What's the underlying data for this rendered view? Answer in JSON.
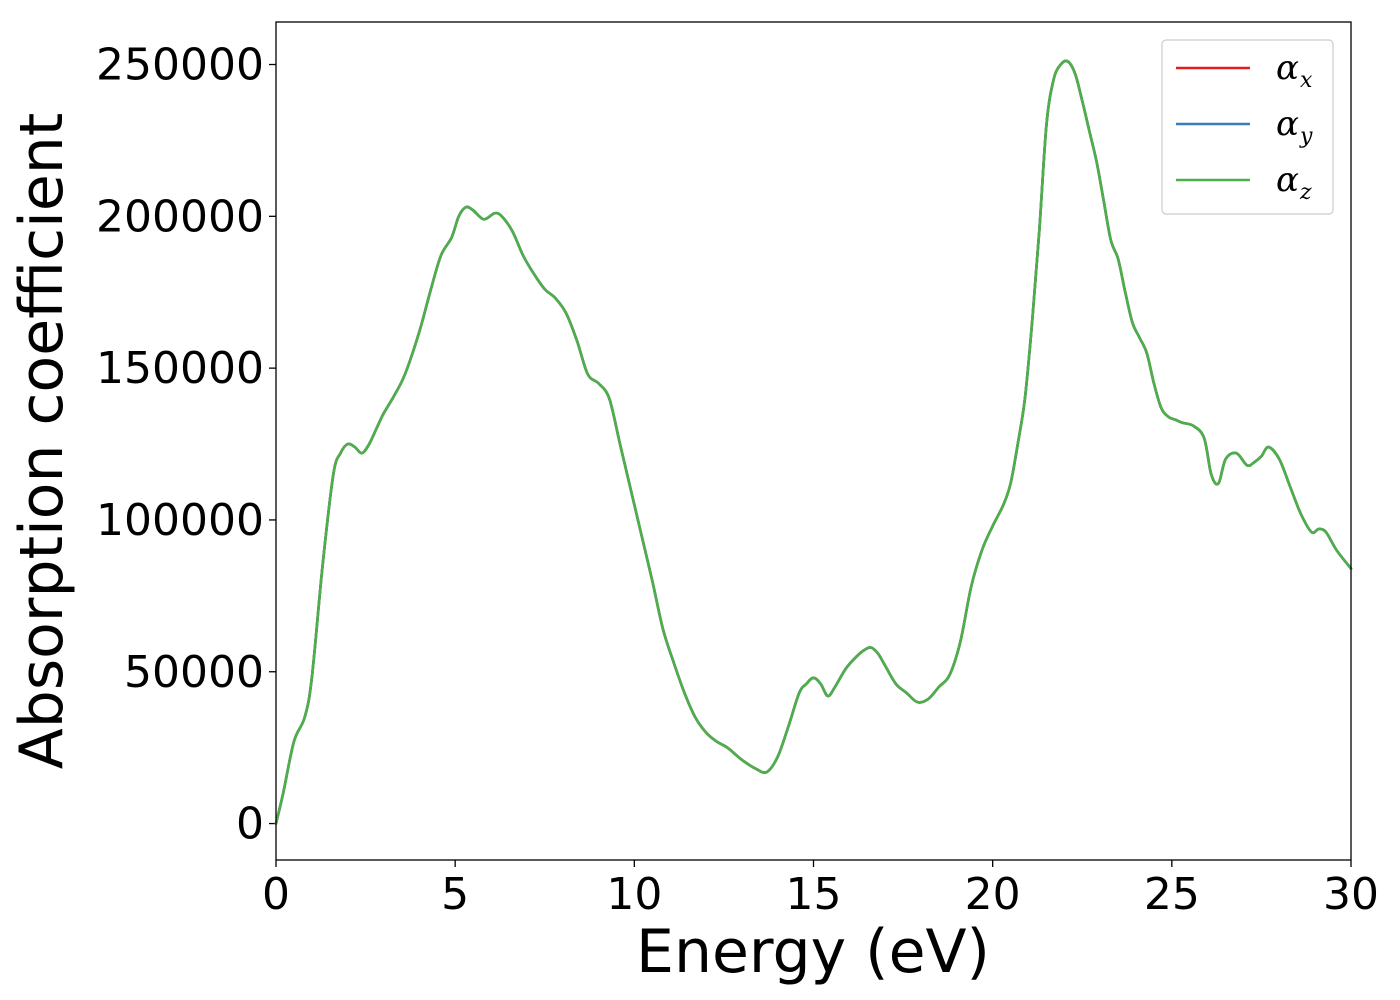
{
  "chart_data": {
    "type": "line",
    "xlabel": "Energy (eV)",
    "ylabel": "Absorption coefficient",
    "xlim": [
      0,
      30
    ],
    "ylim": [
      -12000,
      264000
    ],
    "xticks": [
      0,
      5,
      10,
      15,
      20,
      25,
      30
    ],
    "yticks": [
      0,
      50000,
      100000,
      150000,
      200000,
      250000
    ],
    "grid": false,
    "legend_position": "top-right",
    "series": [
      {
        "name": "α",
        "subscript": "x",
        "color": "#e41a1c",
        "x": [
          0,
          0.2,
          0.5,
          0.8,
          1.0,
          1.3,
          1.6,
          1.8,
          2.0,
          2.2,
          2.4,
          2.6,
          2.8,
          3.0,
          3.3,
          3.6,
          4.0,
          4.3,
          4.6,
          4.9,
          5.1,
          5.3,
          5.5,
          5.8,
          6.1,
          6.3,
          6.6,
          6.9,
          7.2,
          7.5,
          7.8,
          8.1,
          8.4,
          8.7,
          9.0,
          9.3,
          9.6,
          9.9,
          10.2,
          10.5,
          10.8,
          11.1,
          11.4,
          11.7,
          12.0,
          12.3,
          12.6,
          13.0,
          13.4,
          13.7,
          14.0,
          14.3,
          14.6,
          14.8,
          15.0,
          15.2,
          15.4,
          15.6,
          15.9,
          16.2,
          16.4,
          16.6,
          16.8,
          17.0,
          17.3,
          17.6,
          17.9,
          18.2,
          18.5,
          18.8,
          19.1,
          19.4,
          19.7,
          20.0,
          20.3,
          20.5,
          20.7,
          20.9,
          21.1,
          21.3,
          21.5,
          21.7,
          21.9,
          22.1,
          22.3,
          22.5,
          22.7,
          22.9,
          23.1,
          23.3,
          23.5,
          23.7,
          23.9,
          24.1,
          24.3,
          24.5,
          24.7,
          24.9,
          25.1,
          25.3,
          25.6,
          25.9,
          26.1,
          26.3,
          26.5,
          26.8,
          27.1,
          27.3,
          27.5,
          27.7,
          28.0,
          28.3,
          28.6,
          28.9,
          29.1,
          29.3,
          29.6,
          30.0
        ],
        "y": [
          0,
          10000,
          27000,
          35000,
          48000,
          85000,
          115000,
          122000,
          125000,
          124000,
          122000,
          125000,
          130000,
          135000,
          141000,
          148000,
          162000,
          175000,
          187000,
          193000,
          200000,
          203000,
          202000,
          199000,
          201000,
          200000,
          195000,
          187000,
          181000,
          176000,
          173000,
          168000,
          159000,
          148000,
          145000,
          140000,
          125000,
          110000,
          95000,
          80000,
          64000,
          53000,
          43000,
          35000,
          30000,
          27000,
          25000,
          21000,
          18000,
          17000,
          22000,
          32000,
          43000,
          46000,
          48000,
          46000,
          42000,
          45000,
          51000,
          55000,
          57000,
          58000,
          56000,
          52000,
          46000,
          43000,
          40000,
          41000,
          45000,
          49000,
          60000,
          78000,
          90000,
          98000,
          105000,
          112000,
          125000,
          140000,
          165000,
          195000,
          230000,
          245000,
          250000,
          251000,
          247000,
          238000,
          228000,
          218000,
          205000,
          192000,
          186000,
          175000,
          165000,
          160000,
          155000,
          145000,
          137000,
          134000,
          133000,
          132000,
          131000,
          127000,
          115000,
          112000,
          120000,
          122000,
          118000,
          119000,
          121000,
          124000,
          120000,
          111000,
          102000,
          96000,
          97000,
          96000,
          90000,
          84000
        ]
      },
      {
        "name": "α",
        "subscript": "y",
        "color": "#377eb8",
        "x": [
          0,
          0.2,
          0.5,
          0.8,
          1.0,
          1.3,
          1.6,
          1.8,
          2.0,
          2.2,
          2.4,
          2.6,
          2.8,
          3.0,
          3.3,
          3.6,
          4.0,
          4.3,
          4.6,
          4.9,
          5.1,
          5.3,
          5.5,
          5.8,
          6.1,
          6.3,
          6.6,
          6.9,
          7.2,
          7.5,
          7.8,
          8.1,
          8.4,
          8.7,
          9.0,
          9.3,
          9.6,
          9.9,
          10.2,
          10.5,
          10.8,
          11.1,
          11.4,
          11.7,
          12.0,
          12.3,
          12.6,
          13.0,
          13.4,
          13.7,
          14.0,
          14.3,
          14.6,
          14.8,
          15.0,
          15.2,
          15.4,
          15.6,
          15.9,
          16.2,
          16.4,
          16.6,
          16.8,
          17.0,
          17.3,
          17.6,
          17.9,
          18.2,
          18.5,
          18.8,
          19.1,
          19.4,
          19.7,
          20.0,
          20.3,
          20.5,
          20.7,
          20.9,
          21.1,
          21.3,
          21.5,
          21.7,
          21.9,
          22.1,
          22.3,
          22.5,
          22.7,
          22.9,
          23.1,
          23.3,
          23.5,
          23.7,
          23.9,
          24.1,
          24.3,
          24.5,
          24.7,
          24.9,
          25.1,
          25.3,
          25.6,
          25.9,
          26.1,
          26.3,
          26.5,
          26.8,
          27.1,
          27.3,
          27.5,
          27.7,
          28.0,
          28.3,
          28.6,
          28.9,
          29.1,
          29.3,
          29.6,
          30.0
        ],
        "y": [
          0,
          10000,
          27000,
          35000,
          48000,
          85000,
          115000,
          122000,
          125000,
          124000,
          122000,
          125000,
          130000,
          135000,
          141000,
          148000,
          162000,
          175000,
          187000,
          193000,
          200000,
          203000,
          202000,
          199000,
          201000,
          200000,
          195000,
          187000,
          181000,
          176000,
          173000,
          168000,
          159000,
          148000,
          145000,
          140000,
          125000,
          110000,
          95000,
          80000,
          64000,
          53000,
          43000,
          35000,
          30000,
          27000,
          25000,
          21000,
          18000,
          17000,
          22000,
          32000,
          43000,
          46000,
          48000,
          46000,
          42000,
          45000,
          51000,
          55000,
          57000,
          58000,
          56000,
          52000,
          46000,
          43000,
          40000,
          41000,
          45000,
          49000,
          60000,
          78000,
          90000,
          98000,
          105000,
          112000,
          125000,
          140000,
          165000,
          195000,
          230000,
          245000,
          250000,
          251000,
          247000,
          238000,
          228000,
          218000,
          205000,
          192000,
          186000,
          175000,
          165000,
          160000,
          155000,
          145000,
          137000,
          134000,
          133000,
          132000,
          131000,
          127000,
          115000,
          112000,
          120000,
          122000,
          118000,
          119000,
          121000,
          124000,
          120000,
          111000,
          102000,
          96000,
          97000,
          96000,
          90000,
          84000
        ]
      },
      {
        "name": "α",
        "subscript": "z",
        "color": "#4daf4a",
        "x": [
          0,
          0.2,
          0.5,
          0.8,
          1.0,
          1.3,
          1.6,
          1.8,
          2.0,
          2.2,
          2.4,
          2.6,
          2.8,
          3.0,
          3.3,
          3.6,
          4.0,
          4.3,
          4.6,
          4.9,
          5.1,
          5.3,
          5.5,
          5.8,
          6.1,
          6.3,
          6.6,
          6.9,
          7.2,
          7.5,
          7.8,
          8.1,
          8.4,
          8.7,
          9.0,
          9.3,
          9.6,
          9.9,
          10.2,
          10.5,
          10.8,
          11.1,
          11.4,
          11.7,
          12.0,
          12.3,
          12.6,
          13.0,
          13.4,
          13.7,
          14.0,
          14.3,
          14.6,
          14.8,
          15.0,
          15.2,
          15.4,
          15.6,
          15.9,
          16.2,
          16.4,
          16.6,
          16.8,
          17.0,
          17.3,
          17.6,
          17.9,
          18.2,
          18.5,
          18.8,
          19.1,
          19.4,
          19.7,
          20.0,
          20.3,
          20.5,
          20.7,
          20.9,
          21.1,
          21.3,
          21.5,
          21.7,
          21.9,
          22.1,
          22.3,
          22.5,
          22.7,
          22.9,
          23.1,
          23.3,
          23.5,
          23.7,
          23.9,
          24.1,
          24.3,
          24.5,
          24.7,
          24.9,
          25.1,
          25.3,
          25.6,
          25.9,
          26.1,
          26.3,
          26.5,
          26.8,
          27.1,
          27.3,
          27.5,
          27.7,
          28.0,
          28.3,
          28.6,
          28.9,
          29.1,
          29.3,
          29.6,
          30.0
        ],
        "y": [
          0,
          10000,
          27000,
          35000,
          48000,
          85000,
          115000,
          122000,
          125000,
          124000,
          122000,
          125000,
          130000,
          135000,
          141000,
          148000,
          162000,
          175000,
          187000,
          193000,
          200000,
          203000,
          202000,
          199000,
          201000,
          200000,
          195000,
          187000,
          181000,
          176000,
          173000,
          168000,
          159000,
          148000,
          145000,
          140000,
          125000,
          110000,
          95000,
          80000,
          64000,
          53000,
          43000,
          35000,
          30000,
          27000,
          25000,
          21000,
          18000,
          17000,
          22000,
          32000,
          43000,
          46000,
          48000,
          46000,
          42000,
          45000,
          51000,
          55000,
          57000,
          58000,
          56000,
          52000,
          46000,
          43000,
          40000,
          41000,
          45000,
          49000,
          60000,
          78000,
          90000,
          98000,
          105000,
          112000,
          125000,
          140000,
          165000,
          195000,
          230000,
          245000,
          250000,
          251000,
          247000,
          238000,
          228000,
          218000,
          205000,
          192000,
          186000,
          175000,
          165000,
          160000,
          155000,
          145000,
          137000,
          134000,
          133000,
          132000,
          131000,
          127000,
          115000,
          112000,
          120000,
          122000,
          118000,
          119000,
          121000,
          124000,
          120000,
          111000,
          102000,
          96000,
          97000,
          96000,
          90000,
          84000
        ]
      }
    ]
  }
}
